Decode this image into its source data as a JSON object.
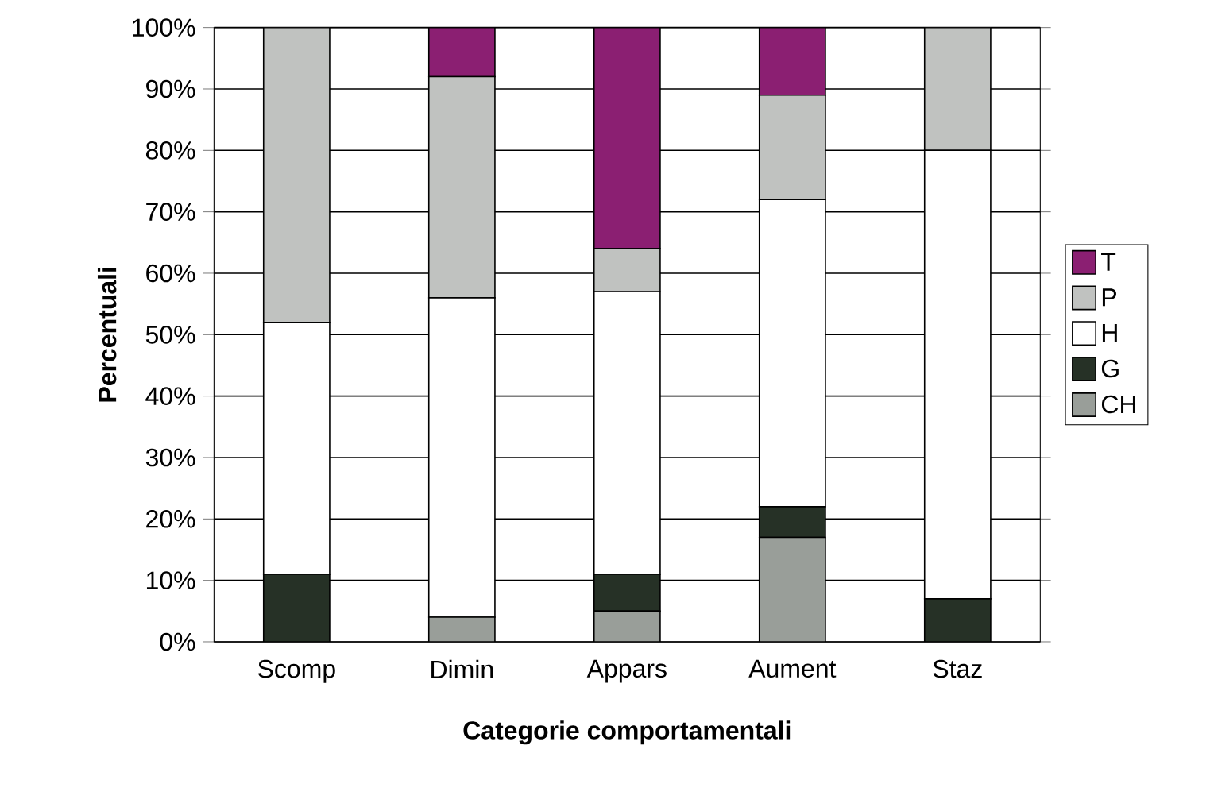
{
  "chart_data": {
    "type": "bar",
    "stacked": true,
    "xlabel": "Categorie comportamentali",
    "ylabel": "Percentuali",
    "categories": [
      "Scomp",
      "Dimin",
      "Appars",
      "Aument",
      "Staz"
    ],
    "series": [
      {
        "name": "CH",
        "color": "#999e99",
        "values": [
          0,
          4,
          5,
          17,
          0
        ]
      },
      {
        "name": "G",
        "color": "#263126",
        "values": [
          11,
          0,
          6,
          5,
          7
        ]
      },
      {
        "name": "H",
        "color": "#ffffff",
        "values": [
          41,
          52,
          46,
          50,
          73
        ]
      },
      {
        "name": "P",
        "color": "#c0c2c0",
        "values": [
          48,
          36,
          7,
          17,
          20
        ]
      },
      {
        "name": "T",
        "color": "#8b1f72",
        "values": [
          0,
          8,
          36,
          11,
          0
        ]
      }
    ],
    "ylim": [
      0,
      100
    ],
    "yticks": [
      {
        "value": 0,
        "label": "0%"
      },
      {
        "value": 10,
        "label": "10%"
      },
      {
        "value": 20,
        "label": "20%"
      },
      {
        "value": 30,
        "label": "30%"
      },
      {
        "value": 40,
        "label": "40%"
      },
      {
        "value": 50,
        "label": "50%"
      },
      {
        "value": 60,
        "label": "60%"
      },
      {
        "value": 70,
        "label": "70%"
      },
      {
        "value": 80,
        "label": "80%"
      },
      {
        "value": 90,
        "label": "90%"
      },
      {
        "value": 100,
        "label": "100%"
      }
    ],
    "grid": "y",
    "legend": "right"
  }
}
